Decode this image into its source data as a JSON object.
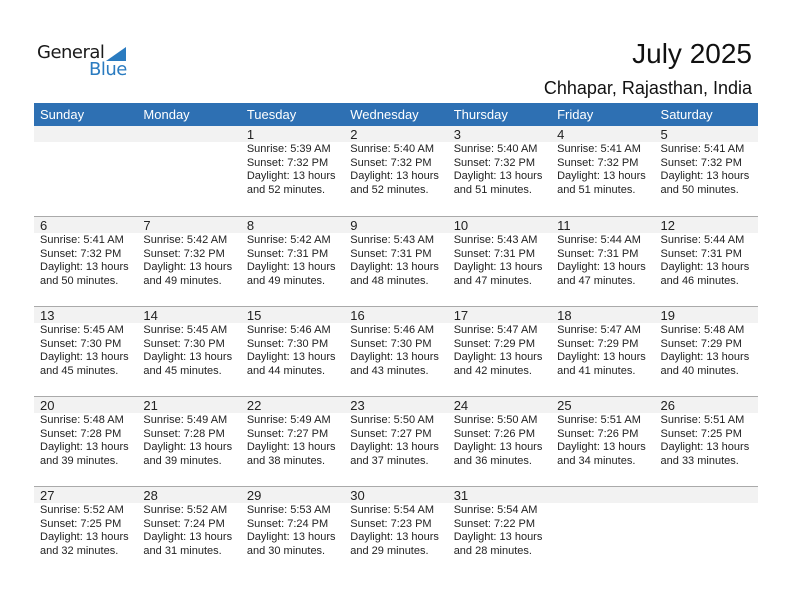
{
  "logo": {
    "text1": "General",
    "text2": "Blue",
    "accent": "#2a7bc0"
  },
  "title": "July 2025",
  "location": "Chhapar, Rajasthan, India",
  "header_color": "#2e70b3",
  "weekdays": [
    "Sunday",
    "Monday",
    "Tuesday",
    "Wednesday",
    "Thursday",
    "Friday",
    "Saturday"
  ],
  "weeks": [
    [
      null,
      null,
      {
        "day": "1",
        "sunrise": "Sunrise: 5:39 AM",
        "sunset": "Sunset: 7:32 PM",
        "daylight": "Daylight: 13 hours",
        "minutes": "and 52 minutes."
      },
      {
        "day": "2",
        "sunrise": "Sunrise: 5:40 AM",
        "sunset": "Sunset: 7:32 PM",
        "daylight": "Daylight: 13 hours",
        "minutes": "and 52 minutes."
      },
      {
        "day": "3",
        "sunrise": "Sunrise: 5:40 AM",
        "sunset": "Sunset: 7:32 PM",
        "daylight": "Daylight: 13 hours",
        "minutes": "and 51 minutes."
      },
      {
        "day": "4",
        "sunrise": "Sunrise: 5:41 AM",
        "sunset": "Sunset: 7:32 PM",
        "daylight": "Daylight: 13 hours",
        "minutes": "and 51 minutes."
      },
      {
        "day": "5",
        "sunrise": "Sunrise: 5:41 AM",
        "sunset": "Sunset: 7:32 PM",
        "daylight": "Daylight: 13 hours",
        "minutes": "and 50 minutes."
      }
    ],
    [
      {
        "day": "6",
        "sunrise": "Sunrise: 5:41 AM",
        "sunset": "Sunset: 7:32 PM",
        "daylight": "Daylight: 13 hours",
        "minutes": "and 50 minutes."
      },
      {
        "day": "7",
        "sunrise": "Sunrise: 5:42 AM",
        "sunset": "Sunset: 7:32 PM",
        "daylight": "Daylight: 13 hours",
        "minutes": "and 49 minutes."
      },
      {
        "day": "8",
        "sunrise": "Sunrise: 5:42 AM",
        "sunset": "Sunset: 7:31 PM",
        "daylight": "Daylight: 13 hours",
        "minutes": "and 49 minutes."
      },
      {
        "day": "9",
        "sunrise": "Sunrise: 5:43 AM",
        "sunset": "Sunset: 7:31 PM",
        "daylight": "Daylight: 13 hours",
        "minutes": "and 48 minutes."
      },
      {
        "day": "10",
        "sunrise": "Sunrise: 5:43 AM",
        "sunset": "Sunset: 7:31 PM",
        "daylight": "Daylight: 13 hours",
        "minutes": "and 47 minutes."
      },
      {
        "day": "11",
        "sunrise": "Sunrise: 5:44 AM",
        "sunset": "Sunset: 7:31 PM",
        "daylight": "Daylight: 13 hours",
        "minutes": "and 47 minutes."
      },
      {
        "day": "12",
        "sunrise": "Sunrise: 5:44 AM",
        "sunset": "Sunset: 7:31 PM",
        "daylight": "Daylight: 13 hours",
        "minutes": "and 46 minutes."
      }
    ],
    [
      {
        "day": "13",
        "sunrise": "Sunrise: 5:45 AM",
        "sunset": "Sunset: 7:30 PM",
        "daylight": "Daylight: 13 hours",
        "minutes": "and 45 minutes."
      },
      {
        "day": "14",
        "sunrise": "Sunrise: 5:45 AM",
        "sunset": "Sunset: 7:30 PM",
        "daylight": "Daylight: 13 hours",
        "minutes": "and 45 minutes."
      },
      {
        "day": "15",
        "sunrise": "Sunrise: 5:46 AM",
        "sunset": "Sunset: 7:30 PM",
        "daylight": "Daylight: 13 hours",
        "minutes": "and 44 minutes."
      },
      {
        "day": "16",
        "sunrise": "Sunrise: 5:46 AM",
        "sunset": "Sunset: 7:30 PM",
        "daylight": "Daylight: 13 hours",
        "minutes": "and 43 minutes."
      },
      {
        "day": "17",
        "sunrise": "Sunrise: 5:47 AM",
        "sunset": "Sunset: 7:29 PM",
        "daylight": "Daylight: 13 hours",
        "minutes": "and 42 minutes."
      },
      {
        "day": "18",
        "sunrise": "Sunrise: 5:47 AM",
        "sunset": "Sunset: 7:29 PM",
        "daylight": "Daylight: 13 hours",
        "minutes": "and 41 minutes."
      },
      {
        "day": "19",
        "sunrise": "Sunrise: 5:48 AM",
        "sunset": "Sunset: 7:29 PM",
        "daylight": "Daylight: 13 hours",
        "minutes": "and 40 minutes."
      }
    ],
    [
      {
        "day": "20",
        "sunrise": "Sunrise: 5:48 AM",
        "sunset": "Sunset: 7:28 PM",
        "daylight": "Daylight: 13 hours",
        "minutes": "and 39 minutes."
      },
      {
        "day": "21",
        "sunrise": "Sunrise: 5:49 AM",
        "sunset": "Sunset: 7:28 PM",
        "daylight": "Daylight: 13 hours",
        "minutes": "and 39 minutes."
      },
      {
        "day": "22",
        "sunrise": "Sunrise: 5:49 AM",
        "sunset": "Sunset: 7:27 PM",
        "daylight": "Daylight: 13 hours",
        "minutes": "and 38 minutes."
      },
      {
        "day": "23",
        "sunrise": "Sunrise: 5:50 AM",
        "sunset": "Sunset: 7:27 PM",
        "daylight": "Daylight: 13 hours",
        "minutes": "and 37 minutes."
      },
      {
        "day": "24",
        "sunrise": "Sunrise: 5:50 AM",
        "sunset": "Sunset: 7:26 PM",
        "daylight": "Daylight: 13 hours",
        "minutes": "and 36 minutes."
      },
      {
        "day": "25",
        "sunrise": "Sunrise: 5:51 AM",
        "sunset": "Sunset: 7:26 PM",
        "daylight": "Daylight: 13 hours",
        "minutes": "and 34 minutes."
      },
      {
        "day": "26",
        "sunrise": "Sunrise: 5:51 AM",
        "sunset": "Sunset: 7:25 PM",
        "daylight": "Daylight: 13 hours",
        "minutes": "and 33 minutes."
      }
    ],
    [
      {
        "day": "27",
        "sunrise": "Sunrise: 5:52 AM",
        "sunset": "Sunset: 7:25 PM",
        "daylight": "Daylight: 13 hours",
        "minutes": "and 32 minutes."
      },
      {
        "day": "28",
        "sunrise": "Sunrise: 5:52 AM",
        "sunset": "Sunset: 7:24 PM",
        "daylight": "Daylight: 13 hours",
        "minutes": "and 31 minutes."
      },
      {
        "day": "29",
        "sunrise": "Sunrise: 5:53 AM",
        "sunset": "Sunset: 7:24 PM",
        "daylight": "Daylight: 13 hours",
        "minutes": "and 30 minutes."
      },
      {
        "day": "30",
        "sunrise": "Sunrise: 5:54 AM",
        "sunset": "Sunset: 7:23 PM",
        "daylight": "Daylight: 13 hours",
        "minutes": "and 29 minutes."
      },
      {
        "day": "31",
        "sunrise": "Sunrise: 5:54 AM",
        "sunset": "Sunset: 7:22 PM",
        "daylight": "Daylight: 13 hours",
        "minutes": "and 28 minutes."
      },
      null,
      null
    ]
  ]
}
